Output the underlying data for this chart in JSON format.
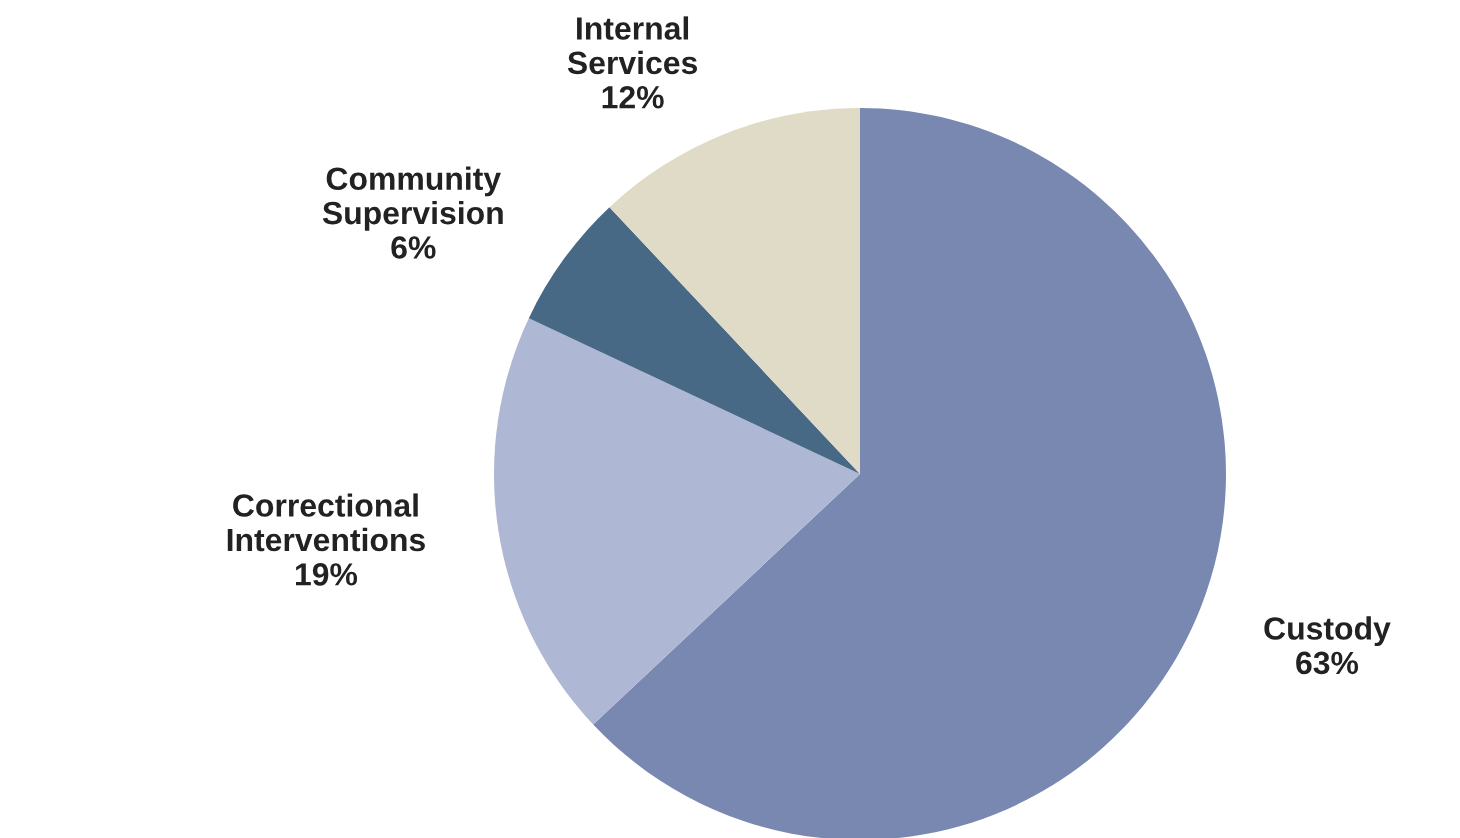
{
  "chart_data": {
    "type": "pie",
    "categories": [
      "Custody",
      "Correctional Interventions",
      "Community Supervision",
      "Internal Services"
    ],
    "values": [
      63,
      19,
      6,
      12
    ],
    "colors": [
      "#7888b0",
      "#aeb8d4",
      "#476986",
      "#dfdbc6"
    ],
    "value_labels": [
      "63%",
      "19%",
      "6%",
      "12%"
    ]
  }
}
